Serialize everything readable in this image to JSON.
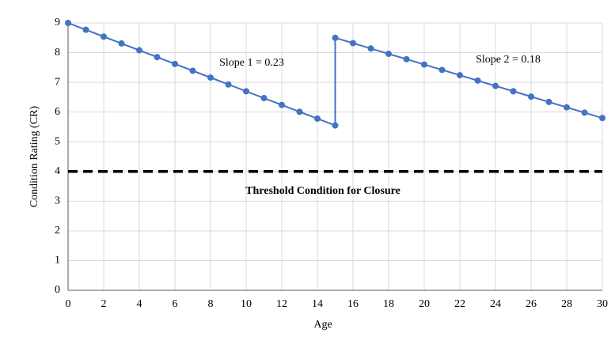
{
  "chart_data": {
    "type": "line",
    "xlabel": "Age",
    "ylabel": "Condition Rating (CR)",
    "xlim": [
      0,
      30
    ],
    "ylim": [
      0,
      9
    ],
    "xticks": [
      0,
      2,
      4,
      6,
      8,
      10,
      12,
      14,
      16,
      18,
      20,
      22,
      24,
      26,
      28,
      30
    ],
    "yticks": [
      0,
      1,
      2,
      3,
      4,
      5,
      6,
      7,
      8,
      9
    ],
    "grid": true,
    "series": [
      {
        "color": "#4472c4",
        "markers": true,
        "x": [
          0,
          1,
          2,
          3,
          4,
          5,
          6,
          7,
          8,
          9,
          10,
          11,
          12,
          13,
          14,
          15,
          15,
          16,
          17,
          18,
          19,
          20,
          21,
          22,
          23,
          24,
          25,
          26,
          27,
          28,
          29,
          30
        ],
        "values": [
          9,
          8.77,
          8.54,
          8.31,
          8.08,
          7.85,
          7.62,
          7.39,
          7.16,
          6.93,
          6.7,
          6.47,
          6.24,
          6.01,
          5.78,
          5.55,
          8.5,
          8.32,
          8.14,
          7.96,
          7.78,
          7.6,
          7.42,
          7.24,
          7.06,
          6.88,
          6.7,
          6.52,
          6.34,
          6.16,
          5.98,
          5.8
        ]
      },
      {
        "color": "#000000",
        "dashed": true,
        "markers": false,
        "x": [
          0,
          30
        ],
        "values": [
          4,
          4
        ]
      }
    ],
    "annotations": [
      "Slope 1 = 0.23",
      "Slope 2 = 0.18",
      "Threshold Condition for Closure"
    ]
  }
}
